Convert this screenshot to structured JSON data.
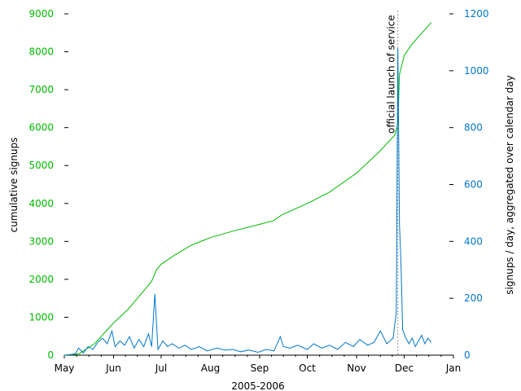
{
  "chart_data": {
    "type": "line",
    "xlabel": "2005-2006",
    "ylabel_left": "cumulative signups",
    "ylabel_right": "signups / day, aggregated over calendar day",
    "x_ticks": [
      "May",
      "Jun",
      "Jul",
      "Aug",
      "Sep",
      "Oct",
      "Nov",
      "Dec",
      "Jan"
    ],
    "y_left_ticks": [
      0,
      1000,
      2000,
      3000,
      4000,
      5000,
      6000,
      7000,
      8000,
      9000
    ],
    "y_right_ticks": [
      0,
      200,
      400,
      600,
      800,
      1000,
      1200
    ],
    "ylim_left": [
      0,
      9000
    ],
    "ylim_right": [
      0,
      1200
    ],
    "annotation": {
      "text": "official launch of service",
      "date": "Nov 27"
    },
    "colors": {
      "left_series": "#00bb00",
      "right_series": "#0077cc",
      "annotation_line": "#999999"
    },
    "series": [
      {
        "axis": "left",
        "points": [
          [
            "May 1",
            0
          ],
          [
            "May 10",
            30
          ],
          [
            "May 20",
            300
          ],
          [
            "Jun 1",
            850
          ],
          [
            "Jun 10",
            1200
          ],
          [
            "Jun 20",
            1700
          ],
          [
            "Jun 25",
            1950
          ],
          [
            "Jun 28",
            2250
          ],
          [
            "Jul 1",
            2400
          ],
          [
            "Jul 10",
            2650
          ],
          [
            "Jul 20",
            2900
          ],
          [
            "Aug 1",
            3100
          ],
          [
            "Aug 15",
            3270
          ],
          [
            "Sep 1",
            3450
          ],
          [
            "Sep 10",
            3550
          ],
          [
            "Sep 15",
            3700
          ],
          [
            "Oct 1",
            4000
          ],
          [
            "Oct 15",
            4300
          ],
          [
            "Nov 1",
            4800
          ],
          [
            "Nov 15",
            5350
          ],
          [
            "Nov 25",
            5800
          ],
          [
            "Nov 27",
            6100
          ],
          [
            "Nov 28",
            7400
          ],
          [
            "Dec 1",
            7900
          ],
          [
            "Dec 5",
            8150
          ],
          [
            "Dec 10",
            8400
          ],
          [
            "Dec 14",
            8580
          ],
          [
            "Dec 18",
            8770
          ]
        ]
      },
      {
        "axis": "right",
        "points": [
          [
            "May 1",
            0
          ],
          [
            "May 5",
            2
          ],
          [
            "May 8",
            5
          ],
          [
            "May 10",
            25
          ],
          [
            "May 13",
            8
          ],
          [
            "May 16",
            30
          ],
          [
            "May 19",
            20
          ],
          [
            "May 22",
            45
          ],
          [
            "May 25",
            60
          ],
          [
            "May 28",
            40
          ],
          [
            "May 31",
            85
          ],
          [
            "Jun 2",
            30
          ],
          [
            "Jun 5",
            50
          ],
          [
            "Jun 8",
            35
          ],
          [
            "Jun 11",
            65
          ],
          [
            "Jun 14",
            25
          ],
          [
            "Jun 17",
            55
          ],
          [
            "Jun 20",
            30
          ],
          [
            "Jun 23",
            75
          ],
          [
            "Jun 25",
            30
          ],
          [
            "Jun 27",
            215
          ],
          [
            "Jun 29",
            20
          ],
          [
            "Jul 2",
            50
          ],
          [
            "Jul 5",
            30
          ],
          [
            "Jul 8",
            40
          ],
          [
            "Jul 12",
            25
          ],
          [
            "Jul 16",
            35
          ],
          [
            "Jul 20",
            20
          ],
          [
            "Jul 25",
            30
          ],
          [
            "Jul 30",
            15
          ],
          [
            "Aug 5",
            25
          ],
          [
            "Aug 10",
            18
          ],
          [
            "Aug 15",
            20
          ],
          [
            "Aug 20",
            12
          ],
          [
            "Aug 25",
            18
          ],
          [
            "Aug 31",
            10
          ],
          [
            "Sep 5",
            20
          ],
          [
            "Sep 10",
            15
          ],
          [
            "Sep 14",
            65
          ],
          [
            "Sep 16",
            30
          ],
          [
            "Sep 20",
            25
          ],
          [
            "Sep 25",
            35
          ],
          [
            "Oct 1",
            20
          ],
          [
            "Oct 5",
            40
          ],
          [
            "Oct 10",
            25
          ],
          [
            "Oct 15",
            35
          ],
          [
            "Oct 20",
            20
          ],
          [
            "Oct 25",
            45
          ],
          [
            "Oct 30",
            30
          ],
          [
            "Nov 3",
            55
          ],
          [
            "Nov 8",
            35
          ],
          [
            "Nov 12",
            45
          ],
          [
            "Nov 16",
            85
          ],
          [
            "Nov 20",
            40
          ],
          [
            "Nov 24",
            60
          ],
          [
            "Nov 26",
            150
          ],
          [
            "Nov 27",
            1080
          ],
          [
            "Nov 28",
            460
          ],
          [
            "Nov 29",
            320
          ],
          [
            "Nov 30",
            90
          ],
          [
            "Dec 2",
            60
          ],
          [
            "Dec 4",
            40
          ],
          [
            "Dec 6",
            60
          ],
          [
            "Dec 8",
            30
          ],
          [
            "Dec 10",
            50
          ],
          [
            "Dec 12",
            70
          ],
          [
            "Dec 14",
            40
          ],
          [
            "Dec 16",
            60
          ],
          [
            "Dec 18",
            45
          ]
        ]
      }
    ]
  }
}
